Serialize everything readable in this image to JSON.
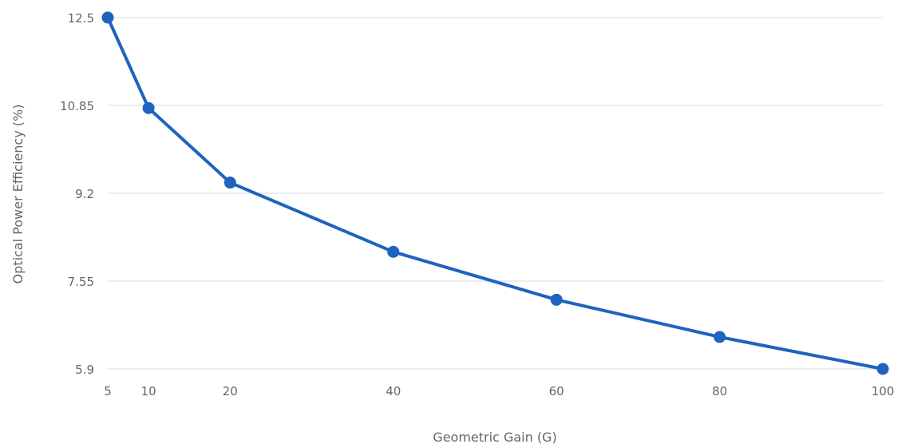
{
  "chart_data": {
    "type": "line",
    "title": "",
    "xlabel": "Geometric Gain (G)",
    "ylabel": "Optical Power Efficiency (%)",
    "x": [
      5,
      10,
      20,
      40,
      60,
      80,
      100
    ],
    "x_ticks": [
      "5",
      "10",
      "20",
      "40",
      "60",
      "80",
      "100"
    ],
    "y_ticks": [
      "12.5",
      "10.85",
      "9.2",
      "7.55",
      "5.9"
    ],
    "xlim": [
      5,
      100
    ],
    "ylim": [
      5.9,
      12.5
    ],
    "grid": "horizontal",
    "legend": "none",
    "series": [
      {
        "values": [
          12.5,
          10.8,
          9.4,
          8.1,
          7.2,
          6.5,
          5.9
        ]
      }
    ],
    "colors": {
      "series": "#1f63be",
      "grid": "#d9d9d9",
      "text": "#666666"
    }
  }
}
